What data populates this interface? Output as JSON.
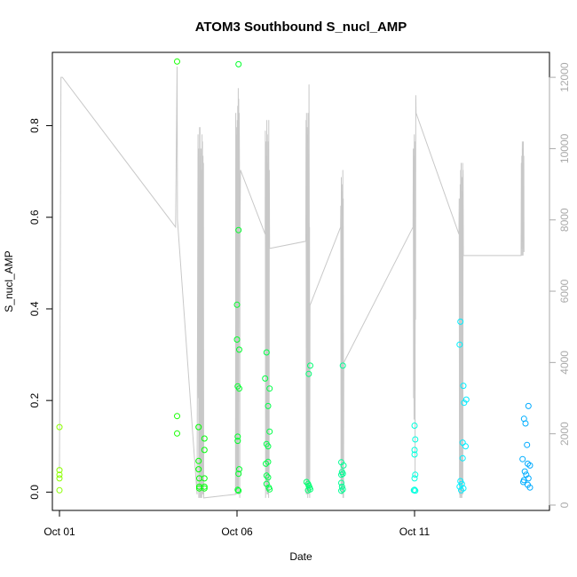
{
  "chart_data": {
    "type": "scatter",
    "title": "ATOM3 Southbound S_nucl_AMP",
    "xlabel": "Date",
    "ylabel": "S_nucl_AMP",
    "x_ticks": [
      "Oct 01",
      "Oct 06",
      "Oct 11"
    ],
    "xlim": [
      "2019-09-30T19:12",
      "2019-10-14T19:12"
    ],
    "ylim": [
      -0.04,
      0.96
    ],
    "y_ticks": [
      0.0,
      0.2,
      0.4,
      0.6,
      0.8
    ],
    "y_tick_labels": [
      "0.0",
      "0.2",
      "0.4",
      "0.6",
      "0.8"
    ],
    "y2lim": [
      -150,
      12700
    ],
    "y2_ticks": [
      0,
      2000,
      4000,
      6000,
      8000,
      10000,
      12000
    ],
    "y2_tick_labels": [
      "0",
      "2000",
      "4000",
      "6000",
      "8000",
      "10000",
      "12000"
    ],
    "grid": false,
    "legend": "none",
    "series": [
      {
        "points": [
          [
            "2019-10-01T00:00",
            0.142
          ],
          [
            "2019-10-01T00:00",
            0.048
          ],
          [
            "2019-10-01T00:00",
            0.038
          ],
          [
            "2019-10-01T00:00",
            0.03
          ],
          [
            "2019-10-01T00:00",
            0.004
          ],
          [
            "2019-10-04T07:30",
            0.94
          ],
          [
            "2019-10-04T07:30",
            0.166
          ],
          [
            "2019-10-04T07:30",
            0.128
          ],
          [
            "2019-10-04T22:00",
            0.142
          ],
          [
            "2019-10-04T22:00",
            0.068
          ],
          [
            "2019-10-04T22:00",
            0.05
          ],
          [
            "2019-10-04T22:30",
            0.03
          ],
          [
            "2019-10-04T22:30",
            0.012
          ],
          [
            "2019-10-04T22:30",
            0.008
          ],
          [
            "2019-10-05T02:00",
            0.117
          ],
          [
            "2019-10-05T02:00",
            0.092
          ],
          [
            "2019-10-05T02:00",
            0.03
          ],
          [
            "2019-10-05T02:00",
            0.012
          ],
          [
            "2019-10-05T02:00",
            0.008
          ],
          [
            "2019-10-06T00:00",
            0.333
          ],
          [
            "2019-10-06T01:00",
            0.572
          ],
          [
            "2019-10-06T01:00",
            0.934
          ],
          [
            "2019-10-06T00:00",
            0.409
          ],
          [
            "2019-10-06T01:30",
            0.311
          ],
          [
            "2019-10-06T00:30",
            0.231
          ],
          [
            "2019-10-06T01:30",
            0.226
          ],
          [
            "2019-10-06T00:30",
            0.121
          ],
          [
            "2019-10-06T00:30",
            0.112
          ],
          [
            "2019-10-06T01:30",
            0.05
          ],
          [
            "2019-10-06T01:00",
            0.04
          ],
          [
            "2019-10-06T00:30",
            0.005
          ],
          [
            "2019-10-06T01:00",
            0.003
          ],
          [
            "2019-10-06T19:00",
            0.248
          ],
          [
            "2019-10-06T20:00",
            0.305
          ],
          [
            "2019-10-06T22:00",
            0.226
          ],
          [
            "2019-10-06T21:00",
            0.188
          ],
          [
            "2019-10-06T22:00",
            0.132
          ],
          [
            "2019-10-06T20:00",
            0.105
          ],
          [
            "2019-10-06T21:00",
            0.1
          ],
          [
            "2019-10-06T19:30",
            0.062
          ],
          [
            "2019-10-06T21:00",
            0.066
          ],
          [
            "2019-10-06T20:00",
            0.036
          ],
          [
            "2019-10-06T21:00",
            0.032
          ],
          [
            "2019-10-06T20:00",
            0.018
          ],
          [
            "2019-10-06T21:30",
            0.01
          ],
          [
            "2019-10-06T22:00",
            0.006
          ],
          [
            "2019-10-08T00:30",
            0.258
          ],
          [
            "2019-10-08T01:30",
            0.276
          ],
          [
            "2019-10-07T23:00",
            0.022
          ],
          [
            "2019-10-08T00:00",
            0.018
          ],
          [
            "2019-10-08T00:30",
            0.014
          ],
          [
            "2019-10-08T01:00",
            0.01
          ],
          [
            "2019-10-08T01:30",
            0.006
          ],
          [
            "2019-10-08T00:00",
            0.004
          ],
          [
            "2019-10-08T22:30",
            0.065
          ],
          [
            "2019-10-08T23:30",
            0.276
          ],
          [
            "2019-10-08T23:00",
            0.044
          ],
          [
            "2019-10-08T22:30",
            0.038
          ],
          [
            "2019-10-09T00:00",
            0.058
          ],
          [
            "2019-10-08T23:30",
            0.04
          ],
          [
            "2019-10-08T22:30",
            0.02
          ],
          [
            "2019-10-08T23:00",
            0.012
          ],
          [
            "2019-10-08T23:30",
            0.006
          ],
          [
            "2019-10-08T22:30",
            0.003
          ],
          [
            "2019-10-11T00:00",
            0.145
          ],
          [
            "2019-10-11T00:30",
            0.115
          ],
          [
            "2019-10-11T00:00",
            0.092
          ],
          [
            "2019-10-11T00:00",
            0.082
          ],
          [
            "2019-10-11T00:30",
            0.038
          ],
          [
            "2019-10-11T00:00",
            0.03
          ],
          [
            "2019-10-11T00:00",
            0.005
          ],
          [
            "2019-10-11T00:30",
            0.003
          ],
          [
            "2019-10-10T23:30",
            0.004
          ],
          [
            "2019-10-12T07:00",
            0.372
          ],
          [
            "2019-10-12T06:30",
            0.322
          ],
          [
            "2019-10-12T09:00",
            0.232
          ],
          [
            "2019-10-12T11:00",
            0.202
          ],
          [
            "2019-10-12T09:30",
            0.195
          ],
          [
            "2019-10-12T08:30",
            0.108
          ],
          [
            "2019-10-12T10:30",
            0.1
          ],
          [
            "2019-10-12T08:30",
            0.074
          ],
          [
            "2019-10-12T07:00",
            0.024
          ],
          [
            "2019-10-12T08:00",
            0.018
          ],
          [
            "2019-10-12T06:30",
            0.012
          ],
          [
            "2019-10-12T09:00",
            0.008
          ],
          [
            "2019-10-12T07:30",
            0.004
          ],
          [
            "2019-10-14T02:00",
            0.16
          ],
          [
            "2019-10-14T03:00",
            0.15
          ],
          [
            "2019-10-14T05:00",
            0.188
          ],
          [
            "2019-10-14T04:00",
            0.103
          ],
          [
            "2019-10-14T01:00",
            0.072
          ],
          [
            "2019-10-14T04:30",
            0.062
          ],
          [
            "2019-10-14T06:00",
            0.058
          ],
          [
            "2019-10-14T02:30",
            0.045
          ],
          [
            "2019-10-14T03:30",
            0.038
          ],
          [
            "2019-10-14T05:00",
            0.03
          ],
          [
            "2019-10-14T02:00",
            0.026
          ],
          [
            "2019-10-14T01:30",
            0.022
          ],
          [
            "2019-10-14T04:30",
            0.016
          ],
          [
            "2019-10-14T06:00",
            0.01
          ]
        ]
      },
      {
        "axis": "right",
        "line_color": "#c8c8c8",
        "points": [
          [
            "2019-10-01T00:00",
            1000
          ],
          [
            "2019-10-01T01:00",
            12000
          ],
          [
            "2019-10-01T02:00",
            12000
          ],
          [
            "2019-10-04T06:30",
            7800
          ],
          [
            "2019-10-04T07:30",
            12300
          ],
          [
            "2019-10-04T07:45",
            8000
          ],
          [
            "2019-10-04T21:00",
            300
          ],
          [
            "2019-10-04T21:30",
            7800
          ],
          [
            "2019-10-04T21:40",
            10400
          ],
          [
            "2019-10-04T21:50",
            3000
          ],
          [
            "2019-10-04T22:00",
            10000
          ],
          [
            "2019-10-04T22:10",
            200
          ],
          [
            "2019-10-04T22:20",
            9000
          ],
          [
            "2019-10-04T22:30",
            600
          ],
          [
            "2019-10-04T22:40",
            10600
          ],
          [
            "2019-10-04T22:50",
            200
          ],
          [
            "2019-10-04T23:00",
            10600
          ],
          [
            "2019-10-04T23:10",
            900
          ],
          [
            "2019-10-04T23:20",
            9800
          ],
          [
            "2019-10-04T23:30",
            200
          ],
          [
            "2019-10-04T23:40",
            10000
          ],
          [
            "2019-10-04T23:50",
            500
          ],
          [
            "2019-10-05T00:00",
            9400
          ],
          [
            "2019-10-05T00:10",
            200
          ],
          [
            "2019-10-05T00:20",
            10400
          ],
          [
            "2019-10-05T00:30",
            600
          ],
          [
            "2019-10-05T00:40",
            10200
          ],
          [
            "2019-10-05T00:50",
            300
          ],
          [
            "2019-10-05T01:00",
            9800
          ],
          [
            "2019-10-05T01:10",
            900
          ],
          [
            "2019-10-05T01:20",
            9600
          ],
          [
            "2019-10-05T01:30",
            200
          ],
          [
            "2019-10-05T23:00",
            300
          ],
          [
            "2019-10-05T23:10",
            11000
          ],
          [
            "2019-10-05T23:20",
            300
          ],
          [
            "2019-10-05T23:30",
            10600
          ],
          [
            "2019-10-05T23:40",
            4200
          ],
          [
            "2019-10-05T23:50",
            10400
          ],
          [
            "2019-10-06T00:00",
            300
          ],
          [
            "2019-10-06T00:10",
            10800
          ],
          [
            "2019-10-06T00:20",
            500
          ],
          [
            "2019-10-06T00:30",
            11200
          ],
          [
            "2019-10-06T00:40",
            400
          ],
          [
            "2019-10-06T00:50",
            11700
          ],
          [
            "2019-10-06T01:00",
            300
          ],
          [
            "2019-10-06T01:10",
            11400
          ],
          [
            "2019-10-06T01:20",
            9200
          ],
          [
            "2019-10-06T01:30",
            11000
          ],
          [
            "2019-10-06T01:40",
            9400
          ],
          [
            "2019-10-06T01:50",
            200
          ],
          [
            "2019-10-06T02:00",
            7400
          ],
          [
            "2019-10-06T02:20",
            9400
          ],
          [
            "2019-10-06T19:00",
            7600
          ],
          [
            "2019-10-06T19:10",
            10500
          ],
          [
            "2019-10-06T19:20",
            200
          ],
          [
            "2019-10-06T19:30",
            10200
          ],
          [
            "2019-10-06T19:40",
            400
          ],
          [
            "2019-10-06T19:50",
            9800
          ],
          [
            "2019-10-06T20:00",
            500
          ],
          [
            "2019-10-06T20:10",
            10800
          ],
          [
            "2019-10-06T20:20",
            300
          ],
          [
            "2019-10-06T20:30",
            10400
          ],
          [
            "2019-10-06T20:40",
            300
          ],
          [
            "2019-10-06T20:50",
            9600
          ],
          [
            "2019-10-06T21:00",
            300
          ],
          [
            "2019-10-06T21:10",
            10200
          ],
          [
            "2019-10-06T21:20",
            200
          ],
          [
            "2019-10-06T21:30",
            10800
          ],
          [
            "2019-10-06T21:40",
            400
          ],
          [
            "2019-10-06T21:50",
            9400
          ],
          [
            "2019-10-06T22:00",
            7200
          ],
          [
            "2019-10-07T22:30",
            7400
          ],
          [
            "2019-10-07T22:40",
            10800
          ],
          [
            "2019-10-07T22:50",
            300
          ],
          [
            "2019-10-07T23:00",
            11000
          ],
          [
            "2019-10-07T23:10",
            500
          ],
          [
            "2019-10-07T23:20",
            10600
          ],
          [
            "2019-10-07T23:30",
            300
          ],
          [
            "2019-10-07T23:40",
            10400
          ],
          [
            "2019-10-07T23:50",
            200
          ],
          [
            "2019-10-08T00:00",
            11000
          ],
          [
            "2019-10-08T00:10",
            300
          ],
          [
            "2019-10-08T00:20",
            9200
          ],
          [
            "2019-10-08T00:30",
            400
          ],
          [
            "2019-10-08T00:40",
            11800
          ],
          [
            "2019-10-08T00:50",
            7400
          ],
          [
            "2019-10-08T01:00",
            7800
          ],
          [
            "2019-10-08T01:10",
            200
          ],
          [
            "2019-10-08T01:20",
            5600
          ],
          [
            "2019-10-08T22:00",
            7800
          ],
          [
            "2019-10-08T22:10",
            8400
          ],
          [
            "2019-10-08T22:20",
            500
          ],
          [
            "2019-10-08T22:30",
            9200
          ],
          [
            "2019-10-08T22:40",
            300
          ],
          [
            "2019-10-08T22:50",
            9000
          ],
          [
            "2019-10-08T23:00",
            400
          ],
          [
            "2019-10-08T23:10",
            8800
          ],
          [
            "2019-10-08T23:20",
            300
          ],
          [
            "2019-10-08T23:30",
            9400
          ],
          [
            "2019-10-08T23:40",
            200
          ],
          [
            "2019-10-08T23:50",
            8600
          ],
          [
            "2019-10-09T00:00",
            200
          ],
          [
            "2019-10-09T00:10",
            4000
          ],
          [
            "2019-10-10T23:00",
            7800
          ],
          [
            "2019-10-10T23:10",
            10000
          ],
          [
            "2019-10-10T23:20",
            3000
          ],
          [
            "2019-10-10T23:30",
            9800
          ],
          [
            "2019-10-10T23:40",
            2400
          ],
          [
            "2019-10-10T23:50",
            10400
          ],
          [
            "2019-10-11T00:00",
            3800
          ],
          [
            "2019-10-11T00:10",
            10000
          ],
          [
            "2019-10-11T00:20",
            800
          ],
          [
            "2019-10-11T00:30",
            10200
          ],
          [
            "2019-10-11T00:40",
            5200
          ],
          [
            "2019-10-11T00:50",
            11500
          ],
          [
            "2019-10-11T01:00",
            11000
          ],
          [
            "2019-10-12T06:00",
            7600
          ],
          [
            "2019-10-12T06:10",
            8600
          ],
          [
            "2019-10-12T06:20",
            300
          ],
          [
            "2019-10-12T06:30",
            8200
          ],
          [
            "2019-10-12T06:40",
            200
          ],
          [
            "2019-10-12T06:50",
            9000
          ],
          [
            "2019-10-12T07:00",
            300
          ],
          [
            "2019-10-12T07:10",
            9400
          ],
          [
            "2019-10-12T07:20",
            200
          ],
          [
            "2019-10-12T07:30",
            9600
          ],
          [
            "2019-10-12T07:40",
            300
          ],
          [
            "2019-10-12T07:50",
            9200
          ],
          [
            "2019-10-12T08:00",
            200
          ],
          [
            "2019-10-12T08:10",
            8800
          ],
          [
            "2019-10-12T08:20",
            400
          ],
          [
            "2019-10-12T08:30",
            9600
          ],
          [
            "2019-10-12T08:40",
            300
          ],
          [
            "2019-10-12T08:50",
            9400
          ],
          [
            "2019-10-12T09:00",
            7000
          ],
          [
            "2019-10-14T00:00",
            7000
          ],
          [
            "2019-10-14T00:10",
            9600
          ],
          [
            "2019-10-14T00:20",
            7200
          ],
          [
            "2019-10-14T00:30",
            9800
          ],
          [
            "2019-10-14T00:40",
            7000
          ],
          [
            "2019-10-14T00:50",
            10200
          ],
          [
            "2019-10-14T01:00",
            7400
          ],
          [
            "2019-10-14T01:10",
            10000
          ],
          [
            "2019-10-14T01:20",
            7000
          ],
          [
            "2019-10-14T01:30",
            10200
          ],
          [
            "2019-10-14T01:40",
            7200
          ],
          [
            "2019-10-14T01:50",
            9800
          ],
          [
            "2019-10-14T02:00",
            7100
          ]
        ]
      }
    ],
    "color_scale": "date: yellow-green → green → cyan → blue"
  }
}
